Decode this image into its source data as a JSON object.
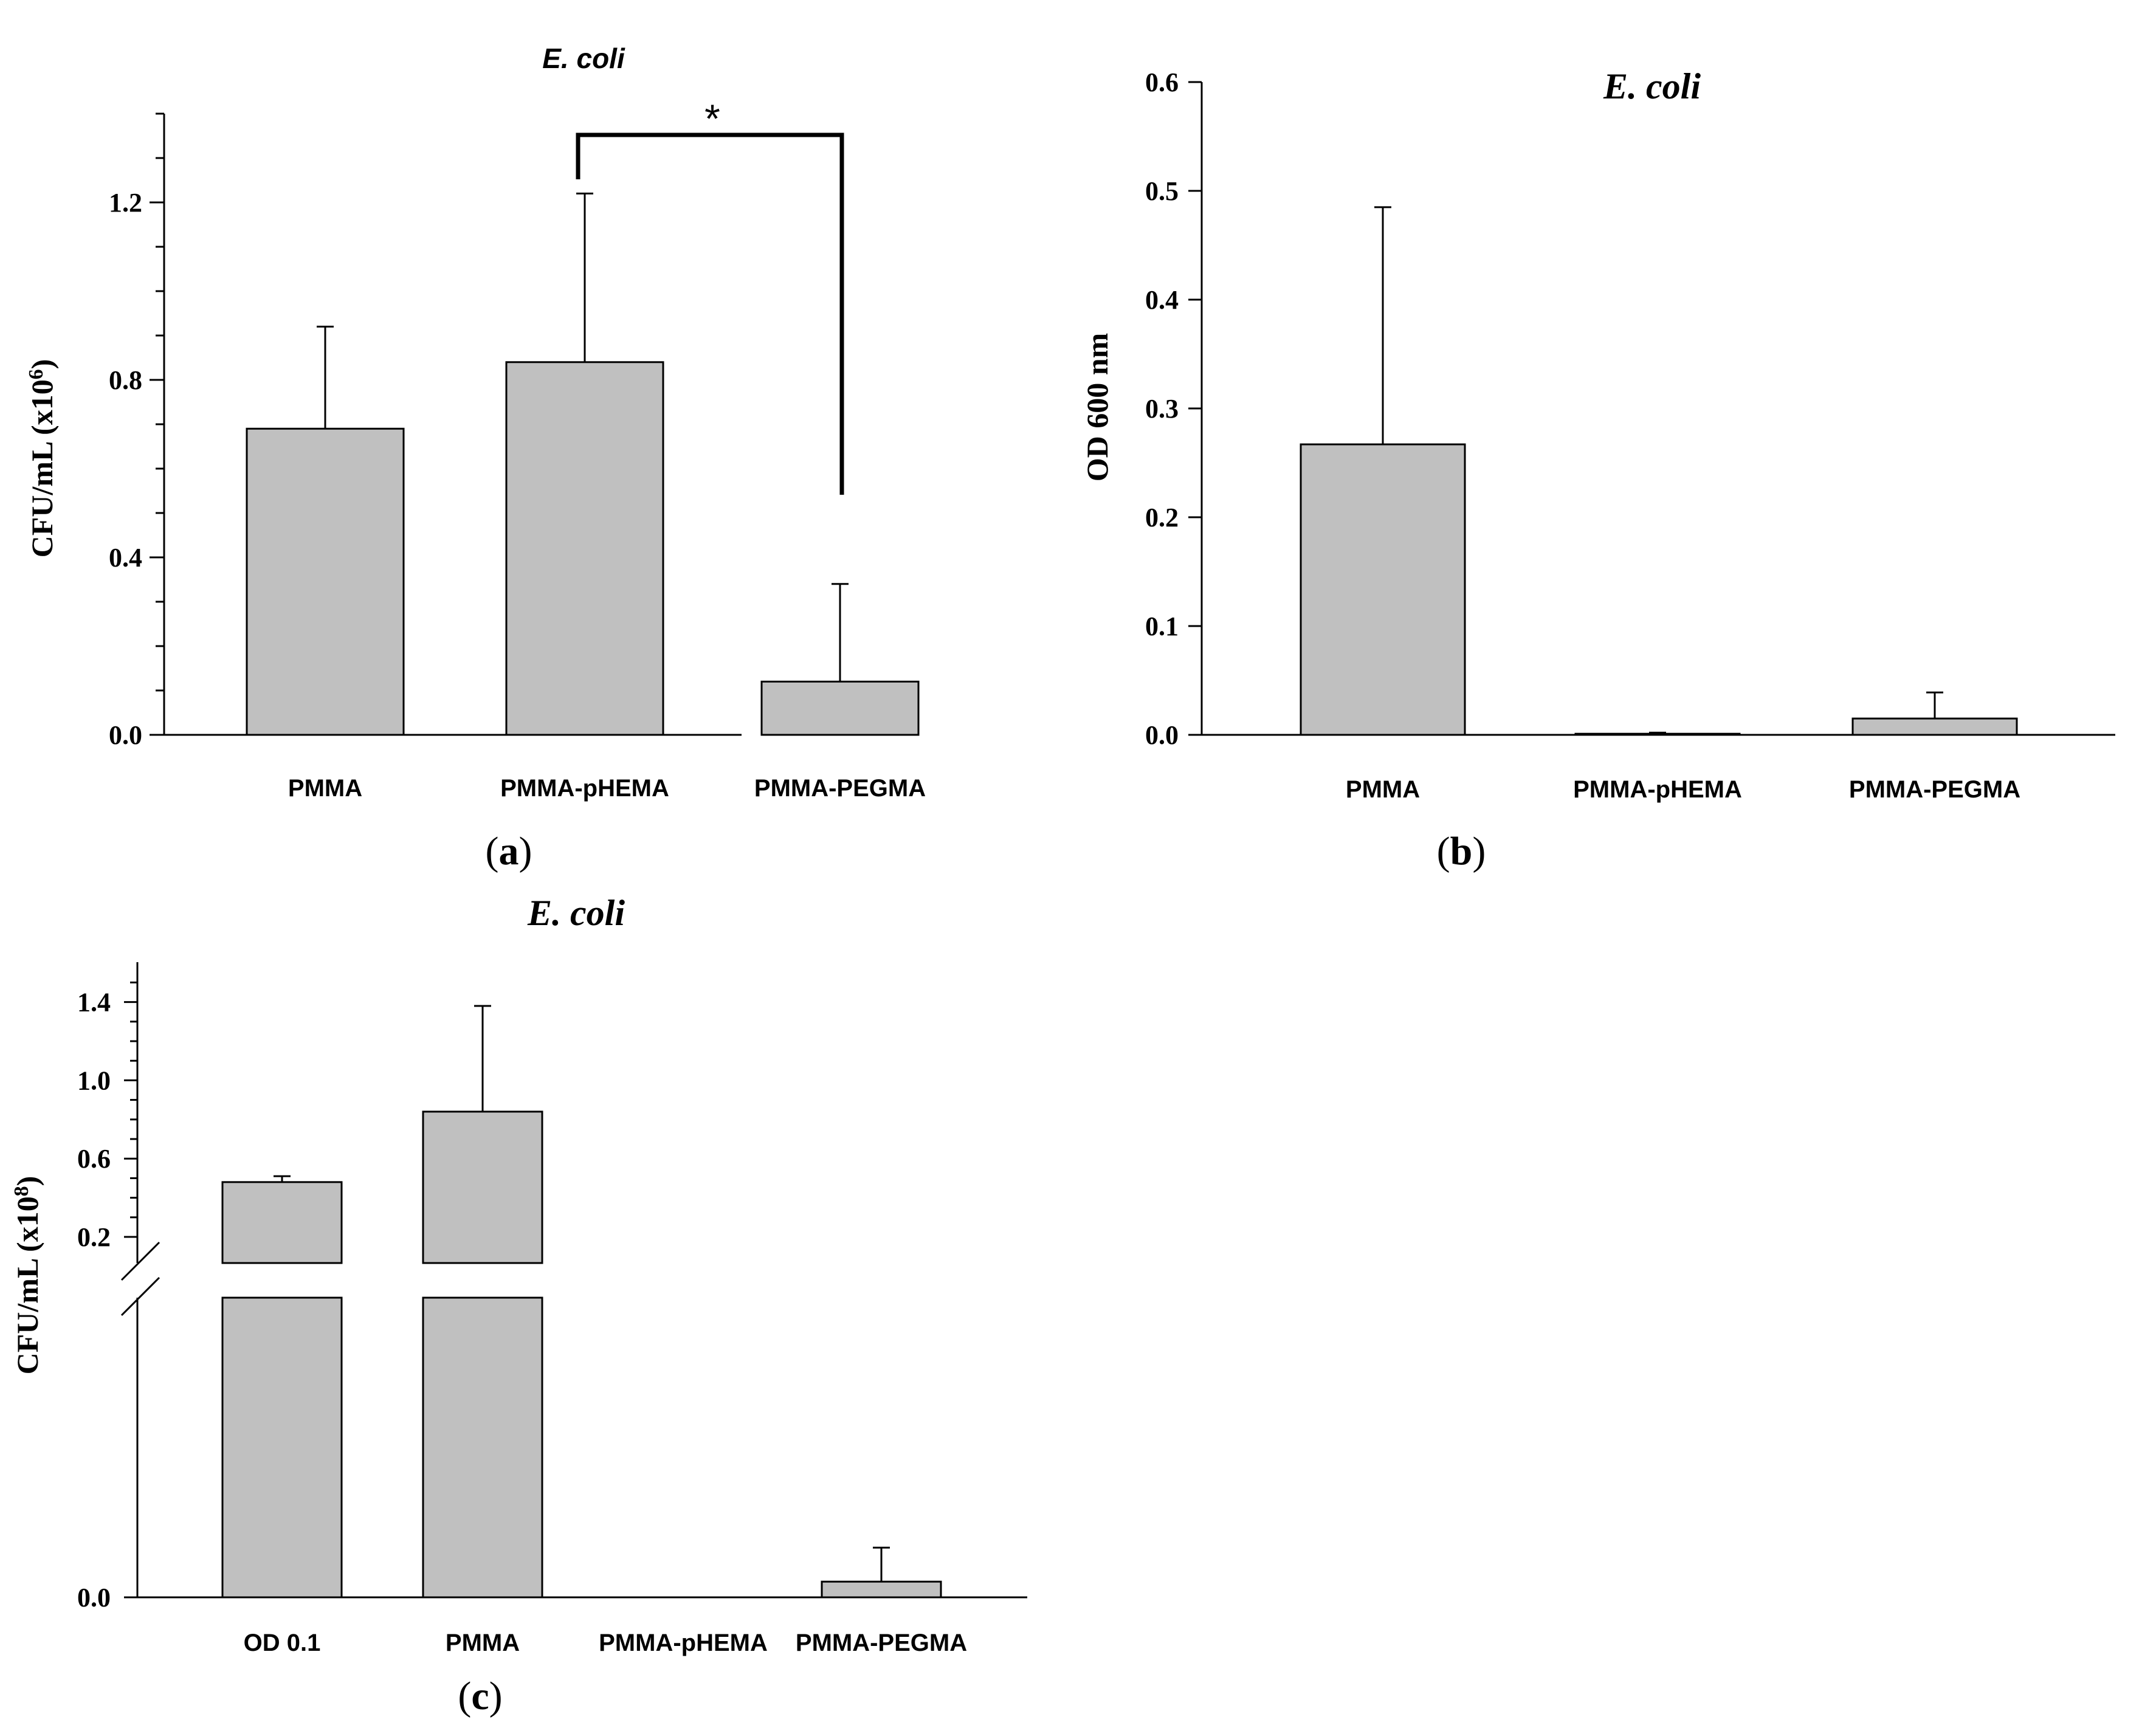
{
  "chart_data": [
    {
      "type": "bar",
      "panel_label": "a",
      "title": "E. coli",
      "ylabel": "CFU/mL (x10",
      "ylabel_exp": "6",
      "ylabel_close": ")",
      "categories": [
        "PMMA",
        "PMMA-pHEMA",
        "PMMA-PEGMA"
      ],
      "values": [
        0.69,
        0.84,
        0.12
      ],
      "errors": [
        0.23,
        0.38,
        0.22
      ],
      "ylim": [
        0,
        1.4
      ],
      "yticks": [
        "0.0",
        "0.4",
        "0.8",
        "1.2"
      ],
      "significance": "*",
      "bar_color": "#c0c0c0"
    },
    {
      "type": "bar",
      "panel_label": "b",
      "title": "E. coli",
      "ylabel": "OD 600 nm",
      "categories": [
        "PMMA",
        "PMMA-pHEMA",
        "PMMA-PEGMA"
      ],
      "values": [
        0.267,
        0.001,
        0.015
      ],
      "errors": [
        0.218,
        0.001,
        0.024
      ],
      "ylim": [
        0,
        0.6
      ],
      "yticks": [
        "0.0",
        "0.1",
        "0.2",
        "0.3",
        "0.4",
        "0.5",
        "0.6"
      ],
      "bar_color": "#c0c0c0"
    },
    {
      "type": "bar",
      "panel_label": "c",
      "title": "E. coli",
      "ylabel": "CFU/mL (x10",
      "ylabel_exp": "8",
      "ylabel_close": ")",
      "categories": [
        "OD 0.1",
        "PMMA",
        "PMMA-pHEMA",
        "PMMA-PEGMA"
      ],
      "values": [
        0.48,
        0.84,
        0.0,
        0.006
      ],
      "errors": [
        0.03,
        0.54,
        0.0,
        0.013
      ],
      "axis_break": true,
      "yticks": [
        "0.0",
        "0.2",
        "0.6",
        "1.0",
        "1.4"
      ],
      "bar_color": "#c0c0c0"
    }
  ]
}
